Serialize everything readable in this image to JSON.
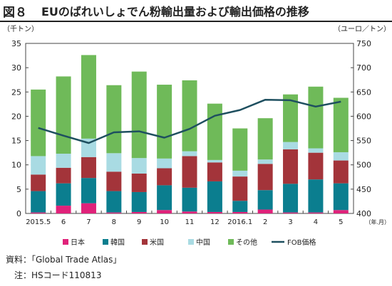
{
  "header": {
    "fig_label": "図８",
    "title": "EUのばれいしょでん粉輸出量および輸出価格の推移"
  },
  "chart_data": {
    "type": "bar",
    "stacked": true,
    "left_axis": {
      "label": "（千トン）",
      "ylim": [
        0,
        35
      ],
      "ticks": [
        "0",
        "5",
        "10",
        "15",
        "20",
        "25",
        "30",
        "35"
      ]
    },
    "right_axis": {
      "label": "（ユーロ／トン）",
      "ylim": [
        400,
        750
      ],
      "ticks": [
        "400",
        "450",
        "500",
        "550",
        "600",
        "650",
        "700",
        "750"
      ]
    },
    "x_unit_label": "（年.月）",
    "categories": [
      "2015.5",
      "6",
      "7",
      "8",
      "9",
      "10",
      "11",
      "12",
      "2016.1",
      "2",
      "3",
      "4",
      "5"
    ],
    "series": [
      {
        "name": "日本",
        "color": "#e0227a",
        "values": [
          0.2,
          1.6,
          2.1,
          0.2,
          0.3,
          0.7,
          0.4,
          0.3,
          0.3,
          0.8,
          0.2,
          0.2,
          0.7
        ]
      },
      {
        "name": "韓国",
        "color": "#0b7e8f",
        "values": [
          4.4,
          4.6,
          5.2,
          4.4,
          4.1,
          5.1,
          4.9,
          6.3,
          2.3,
          4.0,
          5.9,
          6.8,
          5.5
        ]
      },
      {
        "name": "米国",
        "color": "#a3343a",
        "values": [
          3.4,
          3.2,
          4.3,
          4.0,
          3.8,
          3.5,
          6.5,
          3.9,
          5.0,
          5.4,
          7.1,
          5.5,
          4.7
        ]
      },
      {
        "name": "中国",
        "color": "#a9dbe3",
        "values": [
          3.8,
          2.9,
          3.8,
          3.8,
          3.2,
          2.0,
          1.0,
          0.5,
          1.2,
          0.9,
          1.5,
          0.9,
          1.7
        ]
      },
      {
        "name": "その他",
        "color": "#6fba59",
        "values": [
          13.7,
          15.9,
          17.2,
          14.0,
          17.8,
          15.2,
          14.6,
          11.6,
          8.7,
          8.5,
          9.8,
          12.7,
          11.2
        ]
      }
    ],
    "line": {
      "name": "FOB価格",
      "color": "#1e4f5f",
      "values": [
        576,
        560,
        545,
        567,
        569,
        556,
        574,
        601,
        613,
        634,
        633,
        620,
        630
      ]
    },
    "legend_position": "bottom",
    "grid": false
  },
  "footer": {
    "source": "資料：「Global Trade Atlas」",
    "note": "注：HSコード110813"
  }
}
